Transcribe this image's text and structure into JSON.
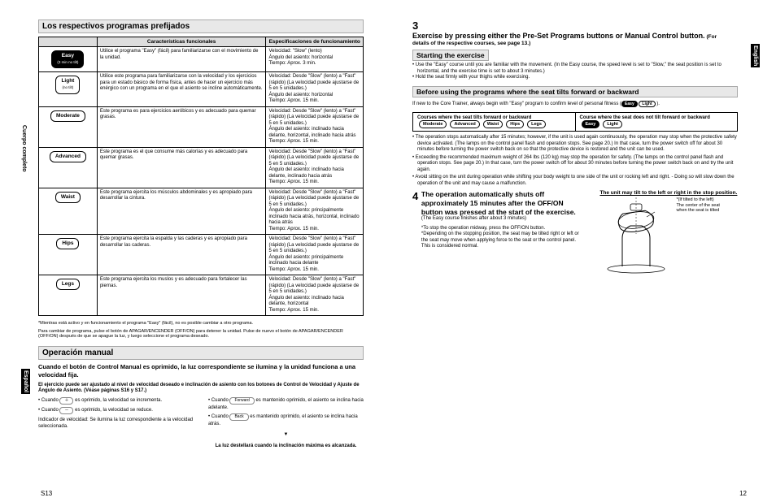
{
  "left": {
    "side_label_body": "Cuerpo completo",
    "side_label_lang": "Español",
    "title_programs": "Los respectivos programas prefijados",
    "th_func": "Características funcionales",
    "th_spec": "Especificaciones de funcionamiento",
    "rows": [
      {
        "btn": "Easy",
        "btn_sub": "(3 min no tilt)",
        "dark": true,
        "func": "Utilice el programa \"Easy\" (fácil) para familiarizarse con el movimiento de la unidad.",
        "spec": "Velocidad: \"Slow\" (lento)\nÁngulo del asiento: horizontal\nTiempo: Aprox. 3 min."
      },
      {
        "btn": "Light",
        "btn_sub": "(no tilt)",
        "func": "Utilice este programa para familiarizarse con la velocidad y los ejercicios para un estado básico de forma física, antes de hacer un ejercicio más enérgico con un programa en el que el asiento se incline automáticamente.",
        "spec": "Velocidad: Desde \"Slow\" (lento) a \"Fast\" (rápido) (La velocidad puede ajustarse de 5 en 5 unidades.)\nÁngulo del asiento: horizontal\nTiempo: Aprox. 15 min."
      },
      {
        "btn": "Moderate",
        "func": "Este programa es para ejercicios aeróbicos y es adecuado para quemar grasas.",
        "spec": "Velocidad: Desde \"Slow\" (lento) a \"Fast\" (rápido) (La velocidad puede ajustarse de 5 en 5 unidades.)\nÁngulo del asiento: inclinado hacia delante, horizontal, inclinado hacia atrás\nTiempo: Aprox. 15 min."
      },
      {
        "btn": "Advanced",
        "func": "Este programa es el que consume más calorías y es adecuado para quemar grasas.",
        "spec": "Velocidad: Desde \"Slow\" (lento) a \"Fast\" (rápido) (La velocidad puede ajustarse de 5 en 5 unidades.)\nÁngulo del asiento: inclinado hacia delante, inclinado hacia atrás\nTiempo: Aprox. 15 min."
      },
      {
        "btn": "Waist",
        "func": "Este programa ejercita los músculos abdominales y es apropiado para desarrollar la cintura.",
        "spec": "Velocidad: Desde \"Slow\" (lento) a \"Fast\" (rápido) (La velocidad puede ajustarse de 5 en 5 unidades.)\nÁngulo del asiento: principalmente inclinado hacia atrás, horizontal, inclinado hacia atrás\nTiempo: Aprox. 15 min."
      },
      {
        "btn": "Hips",
        "func": "Este programa ejercita la espalda y las caderas y es apropiado para desarrollar las caderas.",
        "spec": "Velocidad: Desde \"Slow\" (lento) a \"Fast\" (rápido) (La velocidad puede ajustarse de 5 en 5 unidades.)\nÁngulo del asiento: principalmente inclinado hacia delante\nTiempo: Aprox. 15 min."
      },
      {
        "btn": "Legs",
        "func": "Este programa ejercita los muslos y es adecuado para fortalecer las piernas.",
        "spec": "Velocidad: Desde \"Slow\" (lento) a \"Fast\" (rápido) (La velocidad puede ajustarse de 5 en 5 unidades.)\nÁngulo del asiento: inclinado hacia delante, horizontal\nTiempo: Aprox. 15 min."
      }
    ],
    "fn1": "*Mientras está activo y en funcionamiento el programa \"Easy\" (fácil), no es posible cambiar a otro programa.",
    "fn2": "Para cambiar de programa, pulse el botón de APAGAR/ENCENDER (OFF/ON) para detener la unidad. Pulse de nuevo el botón de APAGAR/ENCENDER (OFF/ON) después de que se apague la luz, y luego seleccione el programa deseado.",
    "title_manual": "Operación manual",
    "manual_desc": "Cuando el botón de Control Manual es oprimido, la luz correspondiente se ilumina y la unidad funciona a una velocidad fija.",
    "manual_sub": "El ejercicio puede ser ajustado al nivel de velocidad deseado e inclinación de asiento con los botones de Control de Velocidad y Ajuste de Ángulo de Asiento. (Véase páginas S16 y S17.)",
    "col_a1": "• Cuando ",
    "col_a1b": " es oprimido, la velocidad se incrementa.",
    "col_a2": "• Cuando ",
    "col_a2b": " es oprimido, la velocidad se reduce.",
    "col_a3": "Indicador de velocidad: Se ilumina la luz correspondiente a la velocidad seleccionada.",
    "col_b1": "• Cuando ",
    "col_b1b": " es mantenido oprimido, el asiento se inclina hacia adelante.",
    "col_b2": "• Cuando ",
    "col_b2b": " es mantenido oprimido, el asiento se inclina hacia atrás.",
    "center_note": "La luz destellará cuando la inclinación máxima es alcanzada.",
    "pageno": "S13"
  },
  "right": {
    "side_label_lang": "English",
    "step3_num": "3",
    "step3_head": "Exercise by pressing either the Pre-Set Programs buttons or Manual Control button.",
    "step3_sub": "(For details of the respective courses, see page 13.)",
    "sub_starting": "Starting the exercise",
    "start_b1": "• Use the \"Easy\" course until you are familiar with the movement. (In the Easy course, the speed level is set to \"Slow,\" the seat position is set to horizontal, and the exercise time is set to about 3 minutes.)",
    "start_b2": "• Hold the seat firmly with your thighs while exercising.",
    "sub_before": "Before using the programs where the seat tilts forward or backward",
    "before_line": "If new to the Core Trainer, always begin with \"Easy\" program to confirm level of personal fitness (",
    "course_left_head": "Courses where the seat tilts forward or backward",
    "course_right_head": "Course where the seat does not tilt forward or backward",
    "cbtns_left": [
      "Moderate",
      "Advanced",
      "Waist",
      "Hips",
      "Legs"
    ],
    "cbtns_right": [
      "Easy",
      "Light"
    ],
    "notes": [
      "• The operation stops automatically after 15 minutes; however, if the unit is used again continuously, the operation may stop when the protective safety device activated. (The lamps on the control panel flash and operation stops. See page 20.) In that case, turn the power switch off for about 30 minutes before turning the power switch back on so that the protective device is restored and the unit can be used.",
      "• Exceeding the recommended maximum weight of 264 lbs (120 kg) may stop the operation for safety. (The lamps on the control panel flash and operation stops. See page 20.) In that case, turn the power switch off for about 30 minutes before turning the power switch back on and try the unit again.",
      "• Avoid sitting on the unit during operation while shifting your body weight to one side of the unit or rocking left and right. - Doing so will slow down the operation of the unit and may cause a malfunction."
    ],
    "step4_num": "4",
    "step4_head": "The operation automatically shuts off approximately 15 minutes after the OFF/ON button was pressed at the start of the exercise.",
    "step4_sub": "(The Easy course finishes after about 3 minutes)",
    "step4_lines": [
      "*To stop the operation midway, press the OFF/ON button.",
      "*Depending on the stopping position, the seat may be tilted right or left or the seat may move when applying force to the seat or the control panel. This is considered normal."
    ],
    "tilt_head": "The unit may tilt to the left or right in the stop position.",
    "tilt_caption1": "*(If tilted to the left)",
    "tilt_caption2": "The center of the seat when the seat is tilted",
    "pageno": "12"
  }
}
